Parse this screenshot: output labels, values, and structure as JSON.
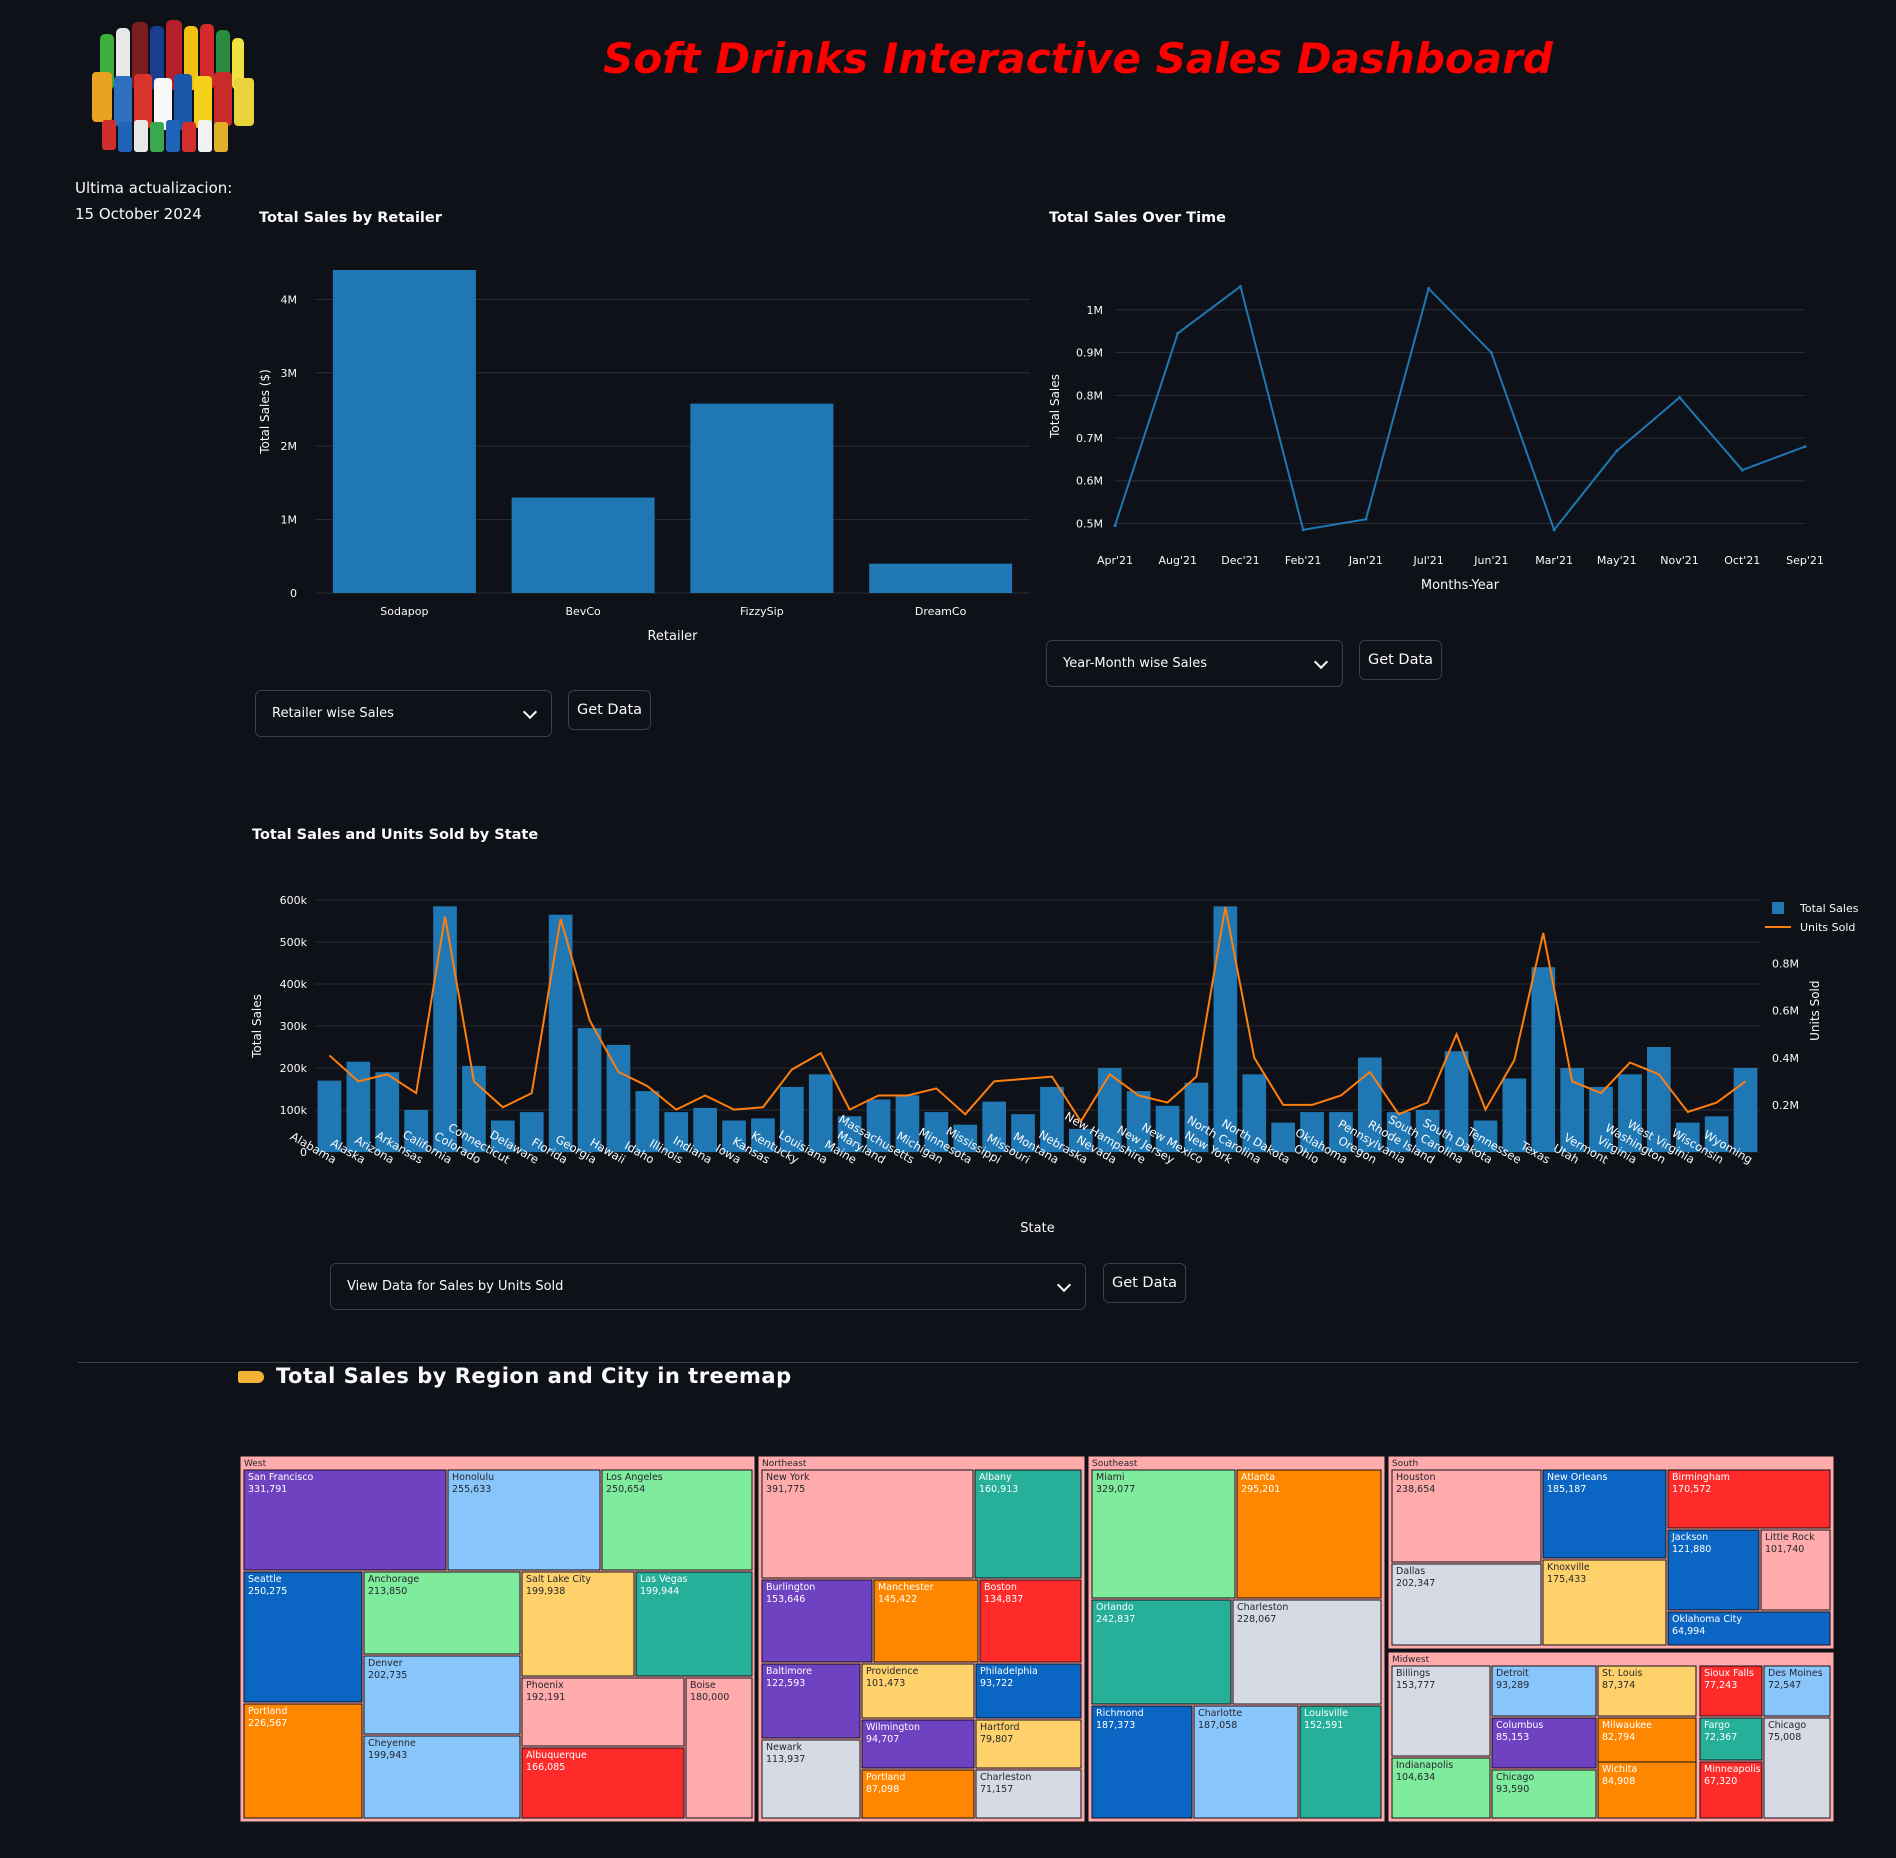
{
  "dashboard": {
    "title": "Soft Drinks Interactive Sales Dashboard",
    "update_label": "Ultima actualizacion:",
    "update_date": "15 October 2024"
  },
  "controls": {
    "retailer_select": "Retailer wise Sales",
    "time_select": "Year-Month wise Sales",
    "state_select": "View Data for Sales by Units Sold",
    "get_data": "Get Data"
  },
  "treemap_heading": "Total Sales by Region and City in treemap",
  "colors": {
    "background": "#0e1117",
    "bar": "#1f77b4",
    "line": "#1f77b4",
    "units_line": "#ff7f0e",
    "title": "#ff0000",
    "grid": "#2b2f36"
  },
  "chart_data": [
    {
      "id": "retailer",
      "type": "bar",
      "title": "Total Sales by Retailer",
      "xlabel": "Retailer",
      "ylabel": "Total Sales ($)",
      "categories": [
        "Sodapop",
        "BevCo",
        "FizzySip",
        "DreamCo"
      ],
      "values": [
        4400000,
        1300000,
        2580000,
        400000
      ],
      "ylim": [
        0,
        4400000
      ],
      "yticks": [
        0,
        1000000,
        2000000,
        3000000,
        4000000
      ],
      "ytick_labels": [
        "0",
        "1M",
        "2M",
        "3M",
        "4M"
      ],
      "grid": true
    },
    {
      "id": "time",
      "type": "line",
      "title": "Total Sales Over Time",
      "xlabel": "Months-Year",
      "ylabel": "Total Sales",
      "categories": [
        "Apr'21",
        "Aug'21",
        "Dec'21",
        "Feb'21",
        "Jan'21",
        "Jul'21",
        "Jun'21",
        "Mar'21",
        "May'21",
        "Nov'21",
        "Oct'21",
        "Sep'21"
      ],
      "values": [
        495000,
        945000,
        1055000,
        485000,
        510000,
        1050000,
        900000,
        485000,
        670000,
        795000,
        625000,
        680000
      ],
      "ylim": [
        480000,
        1070000
      ],
      "yticks": [
        500000,
        600000,
        700000,
        800000,
        900000,
        1000000
      ],
      "ytick_labels": [
        "0.5M",
        "0.6M",
        "0.7M",
        "0.8M",
        "0.9M",
        "1M"
      ],
      "grid": true
    },
    {
      "id": "state",
      "type": "bar",
      "title": "Total Sales and Units Sold by State",
      "xlabel": "State",
      "ylabel": "Total Sales",
      "y2label": "Units Sold",
      "legend": "top-right",
      "categories": [
        "Alabama",
        "Alaska",
        "Arizona",
        "Arkansas",
        "California",
        "Colorado",
        "Connecticut",
        "Delaware",
        "Florida",
        "Georgia",
        "Hawaii",
        "Idaho",
        "Illinois",
        "Indiana",
        "Iowa",
        "Kansas",
        "Kentucky",
        "Louisiana",
        "Maine",
        "Maryland",
        "Massachusetts",
        "Michigan",
        "Minnesota",
        "Mississippi",
        "Missouri",
        "Montana",
        "Nebraska",
        "Nevada",
        "New Hampshire",
        "New Jersey",
        "New Mexico",
        "New York",
        "North Carolina",
        "North Dakota",
        "Ohio",
        "Oklahoma",
        "Oregon",
        "Pennsylvania",
        "Rhode Island",
        "South Carolina",
        "South Dakota",
        "Tennessee",
        "Texas",
        "Utah",
        "Vermont",
        "Virginia",
        "Washington",
        "West Virginia",
        "Wisconsin",
        "Wyoming"
      ],
      "series": [
        {
          "name": "Total Sales",
          "kind": "bar",
          "values": [
            170000,
            215000,
            190000,
            100000,
            585000,
            205000,
            75000,
            95000,
            565000,
            295000,
            255000,
            145000,
            95000,
            105000,
            75000,
            80000,
            155000,
            185000,
            85000,
            125000,
            135000,
            95000,
            65000,
            120000,
            90000,
            155000,
            55000,
            200000,
            145000,
            110000,
            165000,
            585000,
            185000,
            70000,
            95000,
            95000,
            225000,
            95000,
            100000,
            240000,
            75000,
            175000,
            440000,
            200000,
            155000,
            185000,
            250000,
            70000,
            85000,
            200000
          ]
        },
        {
          "name": "Units Sold",
          "kind": "line",
          "values": [
            410000,
            300000,
            330000,
            250000,
            1000000,
            300000,
            190000,
            250000,
            990000,
            560000,
            340000,
            280000,
            180000,
            240000,
            180000,
            190000,
            350000,
            420000,
            180000,
            240000,
            240000,
            270000,
            160000,
            300000,
            310000,
            320000,
            130000,
            330000,
            240000,
            210000,
            320000,
            1040000,
            400000,
            200000,
            200000,
            240000,
            340000,
            160000,
            210000,
            500000,
            180000,
            390000,
            930000,
            300000,
            250000,
            380000,
            330000,
            170000,
            210000,
            300000
          ]
        }
      ],
      "ylim": [
        0,
        600000
      ],
      "yticks": [
        0,
        100000,
        200000,
        300000,
        400000,
        500000,
        600000
      ],
      "ytick_labels": [
        "0",
        "100k",
        "200k",
        "300k",
        "400k",
        "500k",
        "600k"
      ],
      "y2lim": [
        0,
        1070000
      ],
      "y2ticks": [
        200000,
        400000,
        600000,
        800000
      ],
      "y2tick_labels": [
        "0.2M",
        "0.4M",
        "0.6M",
        "0.8M"
      ],
      "grid": true
    },
    {
      "id": "treemap",
      "type": "treemap",
      "regions": [
        {
          "name": "West",
          "cities": [
            {
              "name": "San Francisco",
              "value": "331,791",
              "color": "#6f42c1"
            },
            {
              "name": "Honolulu",
              "value": "255,633",
              "color": "#88c5fa"
            },
            {
              "name": "Los Angeles",
              "value": "250,654",
              "color": "#7eeb9d"
            },
            {
              "name": "Seattle",
              "value": "250,275",
              "color": "#0b66c3"
            },
            {
              "name": "Anchorage",
              "value": "213,850",
              "color": "#7eeb9d"
            },
            {
              "name": "Salt Lake City",
              "value": "199,938",
              "color": "#ffd16a"
            },
            {
              "name": "Las Vegas",
              "value": "199,944",
              "color": "#26b09a"
            },
            {
              "name": "Portland",
              "value": "226,567",
              "color": "#ff8700"
            },
            {
              "name": "Denver",
              "value": "202,735",
              "color": "#88c5fa"
            },
            {
              "name": "Phoenix",
              "value": "192,191",
              "color": "#ffabab"
            },
            {
              "name": "Boise",
              "value": "180,000",
              "color": "#ffabab"
            },
            {
              "name": "Cheyenne",
              "value": "199,943",
              "color": "#88c5fa"
            },
            {
              "name": "Albuquerque",
              "value": "166,085",
              "color": "#ff2b2b"
            }
          ]
        },
        {
          "name": "Northeast",
          "cities": [
            {
              "name": "New York",
              "value": "391,775",
              "color": "#ffabab"
            },
            {
              "name": "Albany",
              "value": "160,913",
              "color": "#26b09a"
            },
            {
              "name": "Burlington",
              "value": "153,646",
              "color": "#6f42c1"
            },
            {
              "name": "Manchester",
              "value": "145,422",
              "color": "#ff8700"
            },
            {
              "name": "Boston",
              "value": "134,837",
              "color": "#ff2b2b"
            },
            {
              "name": "Baltimore",
              "value": "122,593",
              "color": "#6f42c1"
            },
            {
              "name": "Providence",
              "value": "101,473",
              "color": "#ffd16a"
            },
            {
              "name": "Philadelphia",
              "value": "93,722",
              "color": "#0b66c3"
            },
            {
              "name": "Wilmington",
              "value": "94,707",
              "color": "#6f42c1"
            },
            {
              "name": "Hartford",
              "value": "79,807",
              "color": "#ffd16a"
            },
            {
              "name": "Newark",
              "value": "113,937",
              "color": "#d5dae5"
            },
            {
              "name": "Portland",
              "value": "87,098",
              "color": "#ff8700"
            },
            {
              "name": "Charleston",
              "value": "71,157",
              "color": "#d5dae5"
            }
          ]
        },
        {
          "name": "Southeast",
          "cities": [
            {
              "name": "Miami",
              "value": "329,077",
              "color": "#7eeb9d"
            },
            {
              "name": "Atlanta",
              "value": "295,201",
              "color": "#ff8700"
            },
            {
              "name": "Orlando",
              "value": "242,837",
              "color": "#26b09a"
            },
            {
              "name": "Charleston",
              "value": "228,067",
              "color": "#d5dae5"
            },
            {
              "name": "Richmond",
              "value": "187,373",
              "color": "#0b66c3"
            },
            {
              "name": "Charlotte",
              "value": "187,058",
              "color": "#88c5fa"
            },
            {
              "name": "Louisville",
              "value": "152,591",
              "color": "#26b09a"
            }
          ]
        },
        {
          "name": "South",
          "cities": [
            {
              "name": "Houston",
              "value": "238,654",
              "color": "#ffabab"
            },
            {
              "name": "New Orleans",
              "value": "185,187",
              "color": "#0b66c3"
            },
            {
              "name": "Birmingham",
              "value": "170,572",
              "color": "#ff2b2b"
            },
            {
              "name": "Dallas",
              "value": "202,347",
              "color": "#d5dae5"
            },
            {
              "name": "Knoxville",
              "value": "175,433",
              "color": "#ffd16a"
            },
            {
              "name": "Jackson",
              "value": "121,880",
              "color": "#0b66c3"
            },
            {
              "name": "Little Rock",
              "value": "101,740",
              "color": "#ffabab"
            },
            {
              "name": "Oklahoma City",
              "value": "64,994",
              "color": "#0b66c3"
            }
          ]
        },
        {
          "name": "Midwest",
          "cities": [
            {
              "name": "Billings",
              "value": "153,777",
              "color": "#d5dae5"
            },
            {
              "name": "Detroit",
              "value": "93,289",
              "color": "#88c5fa"
            },
            {
              "name": "St. Louis",
              "value": "87,374",
              "color": "#ffd16a"
            },
            {
              "name": "Sioux Falls",
              "value": "77,243",
              "color": "#ff2b2b"
            },
            {
              "name": "Des Moines",
              "value": "72,547",
              "color": "#88c5fa"
            },
            {
              "name": "Columbus",
              "value": "85,153",
              "color": "#6f42c1"
            },
            {
              "name": "Milwaukee",
              "value": "82,794",
              "color": "#ff8700"
            },
            {
              "name": "Fargo",
              "value": "72,367",
              "color": "#26b09a"
            },
            {
              "name": "Chicago",
              "value": "75,008",
              "color": "#d5dae5"
            },
            {
              "name": "Indianapolis",
              "value": "104,634",
              "color": "#7eeb9d"
            },
            {
              "name": "Chicago",
              "value": "93,590",
              "color": "#7eeb9d"
            },
            {
              "name": "Wichita",
              "value": "84,908",
              "color": "#ff8700"
            },
            {
              "name": "Minneapolis",
              "value": "67,320",
              "color": "#ff2b2b"
            }
          ]
        }
      ]
    }
  ]
}
